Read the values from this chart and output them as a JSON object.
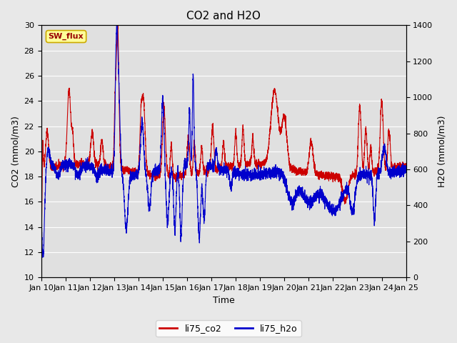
{
  "title": "CO2 and H2O",
  "xlabel": "Time",
  "ylabel_left": "CO2 (mmol/m3)",
  "ylabel_right": "H2O (mmol/m3)",
  "xlim": [
    0,
    15
  ],
  "ylim_left": [
    10,
    30
  ],
  "ylim_right": [
    0,
    1400
  ],
  "xtick_labels": [
    "Jan 10",
    "Jan 11",
    "Jan 12",
    "Jan 13",
    "Jan 14",
    "Jan 15",
    "Jan 16",
    "Jan 17",
    "Jan 18",
    "Jan 19",
    "Jan 20",
    "Jan 21",
    "Jan 22",
    "Jan 23",
    "Jan 24",
    "Jan 25"
  ],
  "co2_color": "#cc0000",
  "h2o_color": "#0000cc",
  "bg_color": "#e8e8e8",
  "plot_bg_color": "#e0e0e0",
  "annotation_text": "SW_flux",
  "annotation_color": "#990000",
  "annotation_bg": "#ffff99",
  "annotation_border": "#ccaa00",
  "legend_co2": "li75_co2",
  "legend_h2o": "li75_h2o",
  "linewidth": 0.8,
  "yticks_left": [
    10,
    12,
    14,
    16,
    18,
    20,
    22,
    24,
    26,
    28,
    30
  ],
  "yticks_right": [
    0,
    200,
    400,
    600,
    800,
    1000,
    1200,
    1400
  ]
}
